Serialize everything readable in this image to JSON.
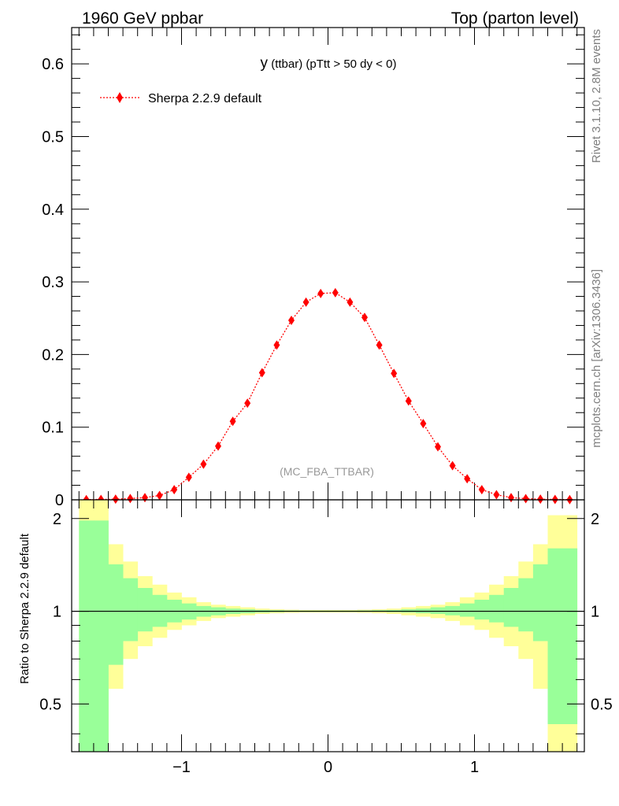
{
  "header": {
    "left": "1960 GeV ppbar",
    "right": "Top (parton level)"
  },
  "side": {
    "rivet": "Rivet 3.1.10,  2.8M events",
    "mcplots": "mcplots.cern.ch [arXiv:1306.3436]"
  },
  "plot": {
    "title_main": "y",
    "title_sub": " (ttbar) (pTtt > 50 dy < 0)",
    "watermark": "(MC_FBA_TTBAR)",
    "ratio_ylabel": "Ratio to Sherpa 2.2.9 default"
  },
  "colors": {
    "series": "#ff0000",
    "band_inner": "#99ff99",
    "band_outer": "#ffff99",
    "axis": "#000000",
    "watermark": "#999999",
    "side_text": "#808080"
  },
  "chart_data": [
    {
      "type": "line",
      "panel": "main",
      "xlim": [
        -1.75,
        1.75
      ],
      "ylim": [
        0,
        0.65
      ],
      "yticks": [
        0,
        0.1,
        0.2,
        0.3,
        0.4,
        0.5,
        0.6
      ],
      "ytick_labels": [
        "0",
        "0.1",
        "0.2",
        "0.3",
        "0.4",
        "0.5",
        "0.6"
      ],
      "legend_placement": "top-left",
      "series": [
        {
          "name": "Sherpa 2.2.9 default",
          "marker": "diamond",
          "line_style": "dotted",
          "x": [
            -1.65,
            -1.55,
            -1.45,
            -1.35,
            -1.25,
            -1.15,
            -1.05,
            -0.95,
            -0.85,
            -0.75,
            -0.65,
            -0.55,
            -0.45,
            -0.35,
            -0.25,
            -0.15,
            -0.05,
            0.05,
            0.15,
            0.25,
            0.35,
            0.45,
            0.55,
            0.65,
            0.75,
            0.85,
            0.95,
            1.05,
            1.15,
            1.25,
            1.35,
            1.45,
            1.55,
            1.65
          ],
          "y": [
            0.0003,
            0.0005,
            0.0009,
            0.0018,
            0.003,
            0.006,
            0.014,
            0.031,
            0.049,
            0.074,
            0.108,
            0.133,
            0.175,
            0.213,
            0.247,
            0.272,
            0.284,
            0.285,
            0.272,
            0.251,
            0.213,
            0.174,
            0.136,
            0.105,
            0.073,
            0.047,
            0.029,
            0.014,
            0.007,
            0.003,
            0.0016,
            0.0009,
            0.0005,
            0.0003
          ]
        }
      ]
    },
    {
      "type": "area",
      "panel": "ratio",
      "xlim": [
        -1.75,
        1.75
      ],
      "ylim": [
        0.35,
        2.3
      ],
      "yscale": "log",
      "yticks": [
        0.5,
        1,
        2
      ],
      "ytick_labels": [
        "0.5",
        "1",
        "2"
      ],
      "xticks": [
        -1,
        0,
        1
      ],
      "xtick_labels": [
        "−1",
        "0",
        "1"
      ],
      "reference_line": 1,
      "bins": [
        -1.7,
        -1.6,
        -1.5,
        -1.4,
        -1.3,
        -1.2,
        -1.1,
        -1.0,
        -0.9,
        -0.8,
        -0.7,
        -0.6,
        -0.5,
        -0.4,
        -0.3,
        -0.2,
        -0.1,
        0.0,
        0.1,
        0.2,
        0.3,
        0.4,
        0.5,
        0.6,
        0.7,
        0.8,
        0.9,
        1.0,
        1.1,
        1.2,
        1.3,
        1.4,
        1.5,
        1.6,
        1.7
      ],
      "bands": [
        {
          "name": "outer",
          "lo": [
            0.3,
            0.3,
            0.56,
            0.7,
            0.77,
            0.82,
            0.87,
            0.9,
            0.93,
            0.95,
            0.96,
            0.97,
            0.98,
            0.985,
            0.988,
            0.99,
            0.99,
            0.99,
            0.99,
            0.988,
            0.985,
            0.98,
            0.97,
            0.96,
            0.95,
            0.93,
            0.9,
            0.87,
            0.82,
            0.77,
            0.7,
            0.56,
            0.3,
            0.3
          ],
          "hi": [
            2.35,
            2.35,
            1.65,
            1.45,
            1.3,
            1.22,
            1.15,
            1.11,
            1.07,
            1.05,
            1.04,
            1.03,
            1.02,
            1.015,
            1.012,
            1.01,
            1.01,
            1.01,
            1.01,
            1.012,
            1.015,
            1.02,
            1.03,
            1.04,
            1.05,
            1.07,
            1.11,
            1.15,
            1.22,
            1.3,
            1.45,
            1.65,
            2.05,
            2.05
          ]
        },
        {
          "name": "inner",
          "lo": [
            0.3,
            0.3,
            0.67,
            0.8,
            0.86,
            0.89,
            0.92,
            0.94,
            0.96,
            0.97,
            0.98,
            0.985,
            0.99,
            0.993,
            0.995,
            0.995,
            0.995,
            0.995,
            0.995,
            0.995,
            0.995,
            0.993,
            0.99,
            0.985,
            0.98,
            0.97,
            0.96,
            0.94,
            0.92,
            0.89,
            0.86,
            0.8,
            0.43,
            0.43
          ],
          "hi": [
            1.97,
            1.97,
            1.42,
            1.28,
            1.19,
            1.13,
            1.09,
            1.06,
            1.04,
            1.03,
            1.02,
            1.015,
            1.01,
            1.008,
            1.006,
            1.005,
            1.005,
            1.005,
            1.005,
            1.006,
            1.008,
            1.01,
            1.015,
            1.02,
            1.03,
            1.04,
            1.06,
            1.09,
            1.13,
            1.19,
            1.28,
            1.42,
            1.6,
            1.6
          ]
        }
      ]
    }
  ]
}
